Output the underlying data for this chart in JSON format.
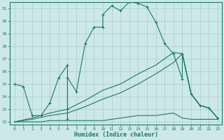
{
  "background_color": "#cce8e8",
  "grid_color": "#aacccc",
  "line_color": "#1a7a6a",
  "xlim": [
    -0.5,
    23.5
  ],
  "ylim": [
    11.8,
    21.5
  ],
  "xlabel": "Humidex (Indice chaleur)",
  "xticks": [
    0,
    1,
    2,
    3,
    4,
    5,
    6,
    7,
    8,
    9,
    10,
    11,
    12,
    13,
    14,
    15,
    16,
    17,
    18,
    19,
    20,
    21,
    22,
    23
  ],
  "yticks": [
    12,
    13,
    14,
    15,
    16,
    17,
    18,
    19,
    20,
    21
  ],
  "main_x": [
    0,
    1,
    2,
    3,
    4,
    5,
    6,
    6,
    6,
    6,
    7,
    8,
    9,
    10,
    10,
    11,
    12,
    13,
    14,
    15,
    16,
    17,
    18,
    19,
    19,
    20,
    21,
    22,
    23
  ],
  "main_y": [
    15,
    14.8,
    12.5,
    12.5,
    13.5,
    15.5,
    16.5,
    12.2,
    13.0,
    15.5,
    14.4,
    18.2,
    19.5,
    19.5,
    20.5,
    21.2,
    20.8,
    21.5,
    21.4,
    21.1,
    19.9,
    18.2,
    17.4,
    15.4,
    17.4,
    14.2,
    13.3,
    13.1,
    12.3
  ],
  "line_min_x": [
    0,
    1,
    2,
    3,
    4,
    5,
    6,
    7,
    8,
    9,
    10,
    11,
    12,
    13,
    14,
    15,
    16,
    17,
    18,
    19,
    20,
    21,
    22,
    23
  ],
  "line_min_y": [
    12.0,
    12.0,
    12.0,
    12.0,
    12.1,
    12.1,
    12.1,
    12.1,
    12.1,
    12.1,
    12.1,
    12.2,
    12.3,
    12.4,
    12.5,
    12.5,
    12.5,
    12.6,
    12.7,
    12.3,
    12.2,
    12.2,
    12.2,
    12.2
  ],
  "line_mid1_x": [
    0,
    2,
    4,
    6,
    8,
    10,
    12,
    14,
    16,
    18,
    19,
    20,
    21,
    22,
    23
  ],
  "line_mid1_y": [
    12.0,
    12.2,
    12.5,
    12.7,
    13.2,
    13.8,
    14.3,
    15.0,
    15.8,
    16.7,
    17.4,
    14.2,
    13.3,
    13.1,
    12.3
  ],
  "line_mid2_x": [
    0,
    2,
    4,
    6,
    8,
    10,
    12,
    14,
    16,
    18,
    19,
    20,
    21,
    22,
    23
  ],
  "line_mid2_y": [
    12.0,
    12.3,
    12.7,
    13.0,
    13.7,
    14.5,
    15.0,
    15.8,
    16.5,
    17.5,
    17.4,
    14.2,
    13.3,
    13.1,
    12.3
  ]
}
